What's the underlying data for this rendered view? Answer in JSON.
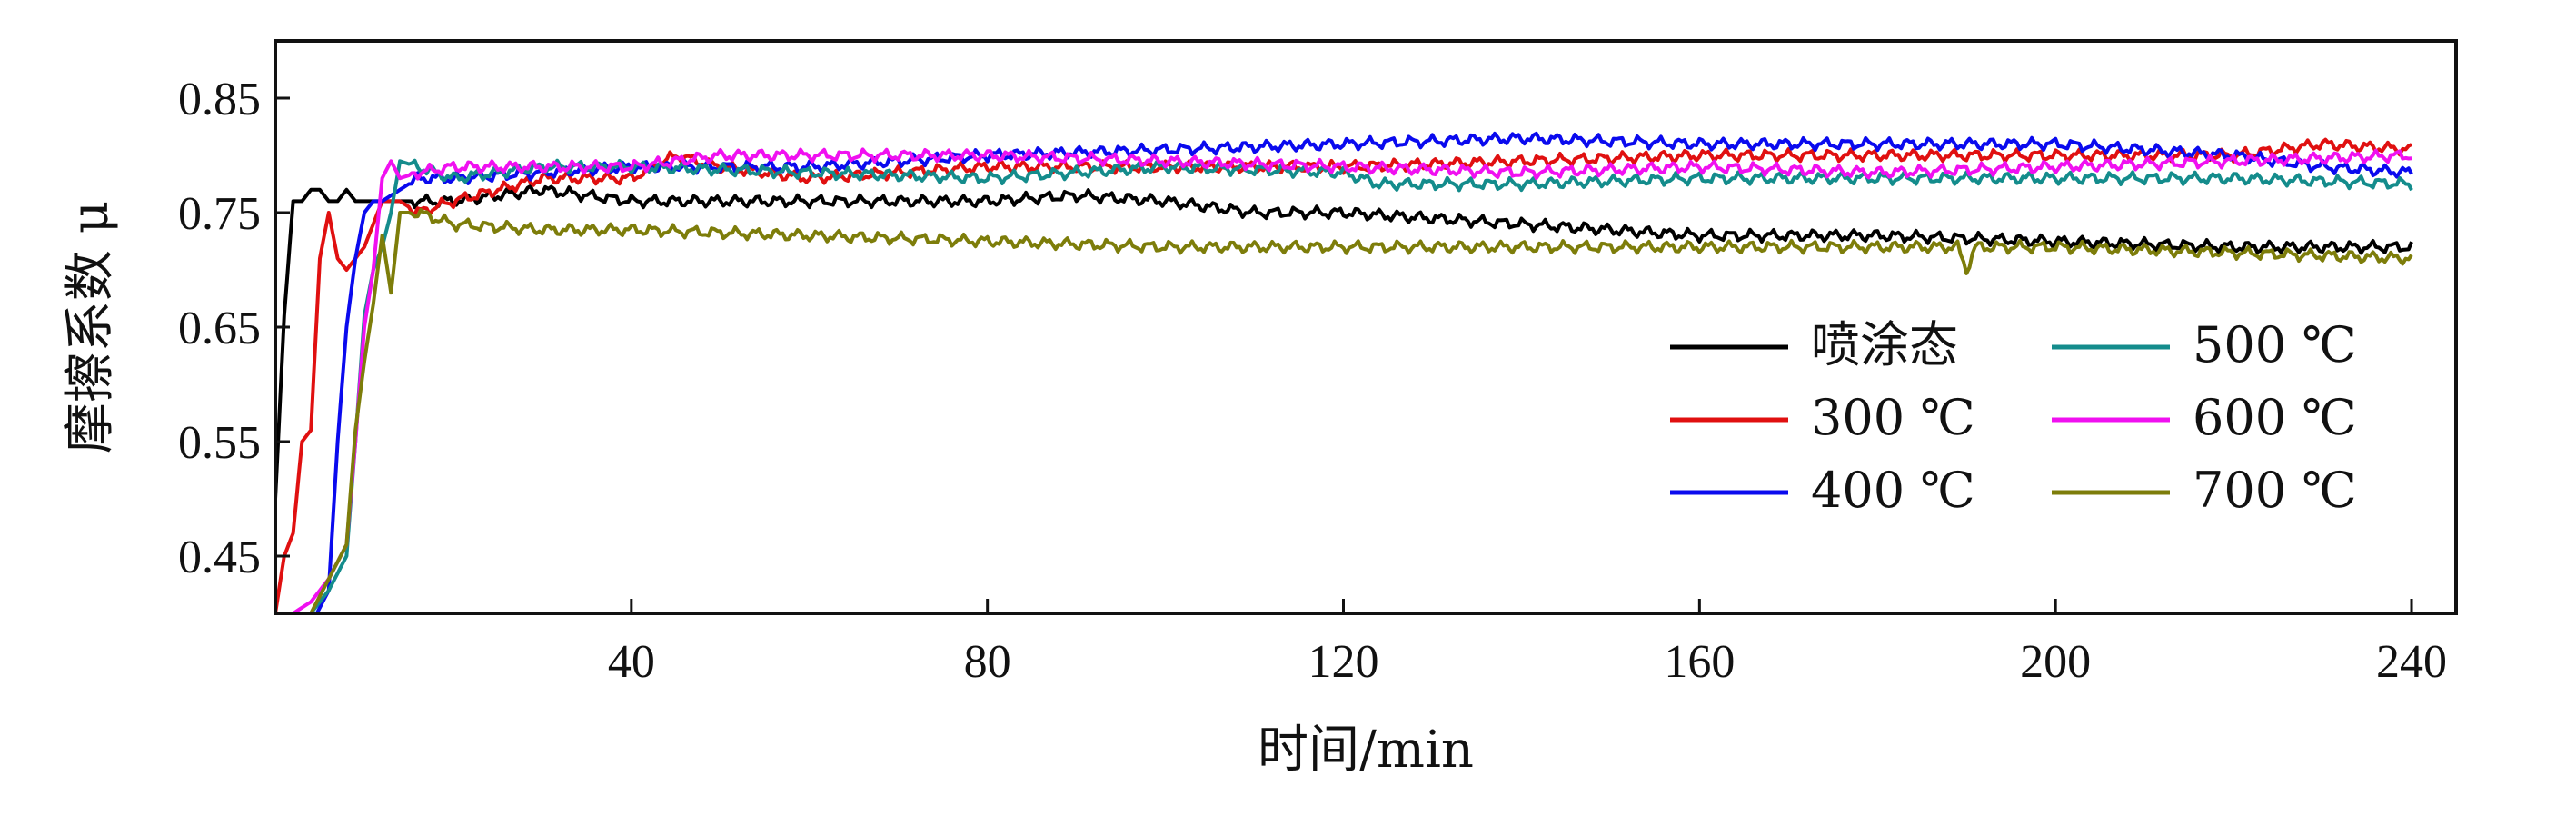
{
  "chart_data": {
    "type": "line",
    "xlabel": "时间/min",
    "ylabel": "摩擦系数 μ",
    "xlim": [
      0,
      245
    ],
    "ylim": [
      0.4,
      0.9
    ],
    "xticks": [
      40,
      80,
      120,
      160,
      200,
      240
    ],
    "yticks": [
      0.45,
      0.55,
      0.65,
      0.75,
      0.85
    ],
    "xtick_labels": [
      "40",
      "80",
      "120",
      "160",
      "200",
      "240"
    ],
    "ytick_labels": [
      "0.45",
      "0.55",
      "0.65",
      "0.75",
      "0.85"
    ],
    "grid": false,
    "legend_position": "center-right",
    "series": [
      {
        "name": "喷涂态",
        "color": "#000000",
        "x": [
          0,
          1,
          2,
          3,
          4,
          5,
          6,
          7,
          8,
          9,
          10,
          12,
          14,
          20,
          30,
          40,
          60,
          80,
          90,
          100,
          110,
          120,
          140,
          160,
          180,
          200,
          220,
          240
        ],
        "y": [
          0.5,
          0.66,
          0.76,
          0.76,
          0.77,
          0.77,
          0.76,
          0.76,
          0.77,
          0.76,
          0.76,
          0.76,
          0.76,
          0.76,
          0.77,
          0.76,
          0.76,
          0.76,
          0.765,
          0.76,
          0.75,
          0.75,
          0.74,
          0.73,
          0.73,
          0.725,
          0.72,
          0.72
        ]
      },
      {
        "name": "300 ℃",
        "color": "#e01010",
        "x": [
          0,
          1,
          2,
          3,
          4,
          5,
          6,
          7,
          8,
          9,
          10,
          12,
          14,
          16,
          20,
          30,
          40,
          45,
          50,
          60,
          80,
          100,
          120,
          140,
          160,
          180,
          200,
          220,
          230,
          240
        ],
        "y": [
          0.4,
          0.45,
          0.47,
          0.55,
          0.56,
          0.71,
          0.75,
          0.71,
          0.7,
          0.71,
          0.72,
          0.76,
          0.76,
          0.75,
          0.76,
          0.78,
          0.78,
          0.8,
          0.79,
          0.78,
          0.79,
          0.79,
          0.79,
          0.795,
          0.8,
          0.8,
          0.8,
          0.8,
          0.81,
          0.805
        ]
      },
      {
        "name": "400 ℃",
        "color": "#0a0aee",
        "x": [
          0,
          2,
          4,
          6,
          7,
          8,
          9,
          10,
          11,
          12,
          14,
          16,
          20,
          30,
          40,
          60,
          80,
          100,
          120,
          140,
          160,
          180,
          200,
          220,
          230,
          240
        ],
        "y": [
          0.36,
          0.38,
          0.39,
          0.42,
          0.55,
          0.65,
          0.71,
          0.75,
          0.76,
          0.76,
          0.77,
          0.78,
          0.78,
          0.785,
          0.79,
          0.79,
          0.8,
          0.805,
          0.81,
          0.815,
          0.81,
          0.81,
          0.81,
          0.8,
          0.79,
          0.785
        ]
      },
      {
        "name": "500 ℃",
        "color": "#148c8c",
        "x": [
          0,
          2,
          4,
          6,
          8,
          9,
          10,
          11,
          12,
          13,
          14,
          16,
          20,
          30,
          40,
          60,
          80,
          100,
          120,
          124,
          140,
          160,
          180,
          200,
          220,
          240
        ],
        "y": [
          0.36,
          0.38,
          0.4,
          0.42,
          0.45,
          0.55,
          0.66,
          0.7,
          0.72,
          0.75,
          0.795,
          0.79,
          0.78,
          0.79,
          0.79,
          0.785,
          0.78,
          0.79,
          0.785,
          0.775,
          0.775,
          0.78,
          0.78,
          0.78,
          0.78,
          0.775
        ]
      },
      {
        "name": "600 ℃",
        "color": "#f010f0",
        "x": [
          0,
          2,
          4,
          6,
          8,
          9,
          10,
          11,
          12,
          13,
          14,
          16,
          20,
          30,
          40,
          50,
          60,
          80,
          100,
          120,
          140,
          160,
          180,
          200,
          220,
          240
        ],
        "y": [
          0.38,
          0.4,
          0.41,
          0.43,
          0.46,
          0.55,
          0.65,
          0.7,
          0.78,
          0.795,
          0.78,
          0.785,
          0.79,
          0.79,
          0.79,
          0.8,
          0.8,
          0.8,
          0.795,
          0.79,
          0.785,
          0.79,
          0.785,
          0.79,
          0.795,
          0.8
        ]
      },
      {
        "name": "700 ℃",
        "color": "#7d7d0a",
        "x": [
          0,
          2,
          4,
          6,
          8,
          9,
          10,
          11,
          12,
          13,
          14,
          16,
          20,
          30,
          40,
          60,
          80,
          100,
          120,
          140,
          160,
          180,
          189,
          190,
          191,
          200,
          220,
          240
        ],
        "y": [
          0.36,
          0.38,
          0.4,
          0.43,
          0.46,
          0.56,
          0.62,
          0.67,
          0.73,
          0.68,
          0.75,
          0.75,
          0.74,
          0.735,
          0.735,
          0.73,
          0.725,
          0.72,
          0.72,
          0.72,
          0.72,
          0.72,
          0.72,
          0.7,
          0.72,
          0.72,
          0.715,
          0.71
        ]
      }
    ]
  }
}
